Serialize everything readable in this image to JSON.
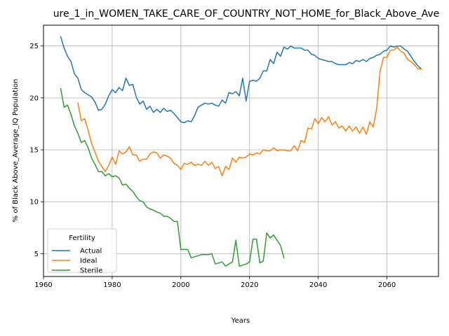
{
  "chart_data": {
    "type": "line",
    "title": "ure_1_in_WOMEN_TAKE_CARE_OF_COUNTRY_NOT_HOME_for_Black_Above_Ave",
    "xlabel": "Years",
    "ylabel": "% of Black Above_Average_IQ Population",
    "xlim": [
      1960,
      2075
    ],
    "ylim": [
      2.8,
      27.0
    ],
    "xticks": [
      1960,
      1980,
      2000,
      2020,
      2040,
      2060
    ],
    "yticks": [
      5,
      10,
      15,
      20,
      25
    ],
    "grid": true,
    "legend": {
      "title": "Fertility",
      "placement": "bottom-left"
    },
    "series": [
      {
        "name": "Actual",
        "color": "#1f77b4",
        "x": [
          1965,
          1966,
          1967,
          1968,
          1969,
          1970,
          1971,
          1972,
          1973,
          1974,
          1975,
          1976,
          1977,
          1978,
          1979,
          1980,
          1981,
          1982,
          1983,
          1984,
          1985,
          1986,
          1987,
          1988,
          1989,
          1990,
          1991,
          1992,
          1993,
          1994,
          1995,
          1996,
          1997,
          1998,
          1999,
          2000,
          2001,
          2002,
          2003,
          2004,
          2005,
          2006,
          2007,
          2008,
          2009,
          2010,
          2011,
          2012,
          2013,
          2014,
          2015,
          2016,
          2017,
          2018,
          2019,
          2020,
          2021,
          2022,
          2023,
          2024,
          2025,
          2026,
          2027,
          2028,
          2029,
          2030,
          2031,
          2032,
          2033,
          2034,
          2035,
          2036,
          2037,
          2038,
          2039,
          2040,
          2041,
          2042,
          2043,
          2044,
          2045,
          2046,
          2047,
          2048,
          2049,
          2050,
          2051,
          2052,
          2053,
          2054,
          2055,
          2056,
          2057,
          2058,
          2059,
          2060,
          2061,
          2062,
          2063,
          2064,
          2065,
          2066,
          2067,
          2068,
          2069,
          2070
        ],
        "values": [
          25.9,
          24.8,
          24.0,
          23.5,
          22.3,
          21.9,
          20.8,
          20.5,
          20.3,
          20.1,
          19.6,
          18.8,
          18.9,
          19.4,
          20.2,
          20.8,
          20.5,
          21.0,
          20.7,
          21.9,
          21.2,
          21.3,
          20.1,
          19.4,
          19.7,
          18.9,
          19.2,
          18.6,
          18.9,
          18.6,
          19.0,
          18.7,
          18.8,
          18.5,
          18.1,
          17.7,
          17.6,
          17.8,
          17.7,
          18.3,
          19.1,
          19.3,
          19.5,
          19.4,
          19.5,
          19.3,
          19.2,
          19.8,
          19.5,
          20.5,
          20.4,
          20.6,
          20.2,
          21.9,
          19.7,
          21.6,
          21.7,
          21.6,
          21.9,
          22.6,
          22.6,
          23.7,
          23.3,
          24.4,
          24.0,
          24.9,
          24.7,
          25.0,
          24.8,
          24.8,
          24.8,
          24.6,
          24.6,
          24.2,
          24.1,
          23.8,
          23.7,
          23.6,
          23.5,
          23.5,
          23.3,
          23.2,
          23.2,
          23.2,
          23.4,
          23.3,
          23.6,
          23.5,
          23.7,
          23.5,
          23.8,
          23.9,
          24.1,
          24.2,
          24.5,
          24.6,
          25.0,
          24.9,
          25.0,
          25.0,
          24.7,
          24.5,
          24.0,
          23.5,
          23.1,
          22.8
        ],
        "note_end": 2070
      },
      {
        "name": "Ideal",
        "color": "#ff7f0e",
        "x": [
          1970,
          1971,
          1972,
          1973,
          1974,
          1975,
          1976,
          1977,
          1978,
          1979,
          1980,
          1981,
          1982,
          1983,
          1984,
          1985,
          1986,
          1987,
          1988,
          1989,
          1990,
          1991,
          1992,
          1993,
          1994,
          1995,
          1996,
          1997,
          1998,
          1999,
          2000,
          2001,
          2002,
          2003,
          2004,
          2005,
          2006,
          2007,
          2008,
          2009,
          2010,
          2011,
          2012,
          2013,
          2014,
          2015,
          2016,
          2017,
          2018,
          2019,
          2020,
          2021,
          2022,
          2023,
          2024,
          2025,
          2026,
          2027,
          2028,
          2029,
          2030,
          2031,
          2032,
          2033,
          2034,
          2035,
          2036,
          2037,
          2038,
          2039,
          2040,
          2041,
          2042,
          2043,
          2044,
          2045,
          2046,
          2047,
          2048,
          2049,
          2050,
          2051,
          2052,
          2053,
          2054,
          2055,
          2056,
          2057,
          2058,
          2059,
          2060,
          2061,
          2062,
          2063,
          2064,
          2065,
          2066,
          2067,
          2068,
          2069,
          2070
        ],
        "values": [
          19.5,
          17.8,
          18.0,
          16.9,
          15.6,
          14.8,
          13.9,
          13.4,
          12.9,
          13.5,
          14.3,
          13.6,
          14.9,
          14.6,
          14.8,
          15.3,
          14.5,
          14.5,
          13.9,
          14.1,
          14.1,
          14.6,
          14.8,
          14.7,
          14.2,
          14.5,
          14.4,
          14.2,
          13.7,
          13.5,
          13.1,
          13.7,
          13.6,
          13.8,
          13.5,
          13.6,
          13.5,
          13.9,
          13.5,
          13.8,
          13.2,
          13.4,
          12.5,
          13.4,
          13.1,
          14.2,
          13.8,
          14.3,
          14.2,
          14.3,
          14.6,
          14.5,
          14.7,
          14.6,
          15.0,
          14.9,
          14.9,
          15.2,
          14.9,
          15.0,
          15.0,
          14.9,
          14.9,
          15.4,
          14.9,
          15.9,
          15.7,
          17.1,
          17.0,
          18.0,
          17.5,
          18.1,
          17.7,
          18.2,
          17.4,
          17.7,
          17.1,
          17.3,
          16.8,
          17.3,
          16.8,
          17.2,
          16.6,
          17.2,
          16.5,
          17.7,
          17.2,
          19.0,
          22.6,
          23.9,
          23.9,
          24.6,
          24.6,
          24.9,
          24.5,
          24.3,
          23.7,
          23.5,
          23.2,
          22.8,
          22.8
        ]
      },
      {
        "name": "Sterile",
        "color": "#2ca02c",
        "x": [
          1965,
          1966,
          1967,
          1968,
          1969,
          1970,
          1971,
          1972,
          1973,
          1974,
          1975,
          1976,
          1977,
          1978,
          1979,
          1980,
          1981,
          1982,
          1983,
          1984,
          1985,
          1986,
          1987,
          1988,
          1989,
          1990,
          1991,
          1992,
          1993,
          1994,
          1995,
          1996,
          1997,
          1998,
          1999,
          2000,
          2001,
          2002,
          2003,
          2004,
          2005,
          2006,
          2007,
          2008,
          2009,
          2010,
          2011,
          2012,
          2013,
          2014,
          2015,
          2016,
          2017,
          2018,
          2019,
          2020,
          2021,
          2022,
          2023,
          2024,
          2025,
          2026,
          2027,
          2028,
          2029,
          2030
        ],
        "values": [
          20.9,
          19.1,
          19.3,
          18.4,
          17.3,
          16.6,
          15.7,
          15.9,
          15.2,
          14.2,
          13.6,
          12.9,
          12.9,
          12.5,
          12.7,
          12.4,
          12.5,
          12.3,
          11.6,
          11.7,
          11.3,
          11.0,
          10.5,
          10.1,
          10.0,
          9.5,
          9.3,
          9.2,
          9.0,
          8.9,
          8.6,
          8.6,
          8.4,
          8.1,
          8.1,
          5.4,
          5.4,
          5.4,
          4.6,
          4.7,
          4.8,
          4.9,
          4.9,
          4.9,
          5.0,
          4.0,
          4.1,
          4.2,
          3.8,
          4.0,
          4.2,
          6.3,
          3.8,
          3.9,
          4.0,
          4.2,
          6.4,
          6.4,
          4.1,
          4.3,
          7.0,
          6.5,
          6.8,
          6.3,
          5.8,
          4.6
        ]
      }
    ]
  }
}
